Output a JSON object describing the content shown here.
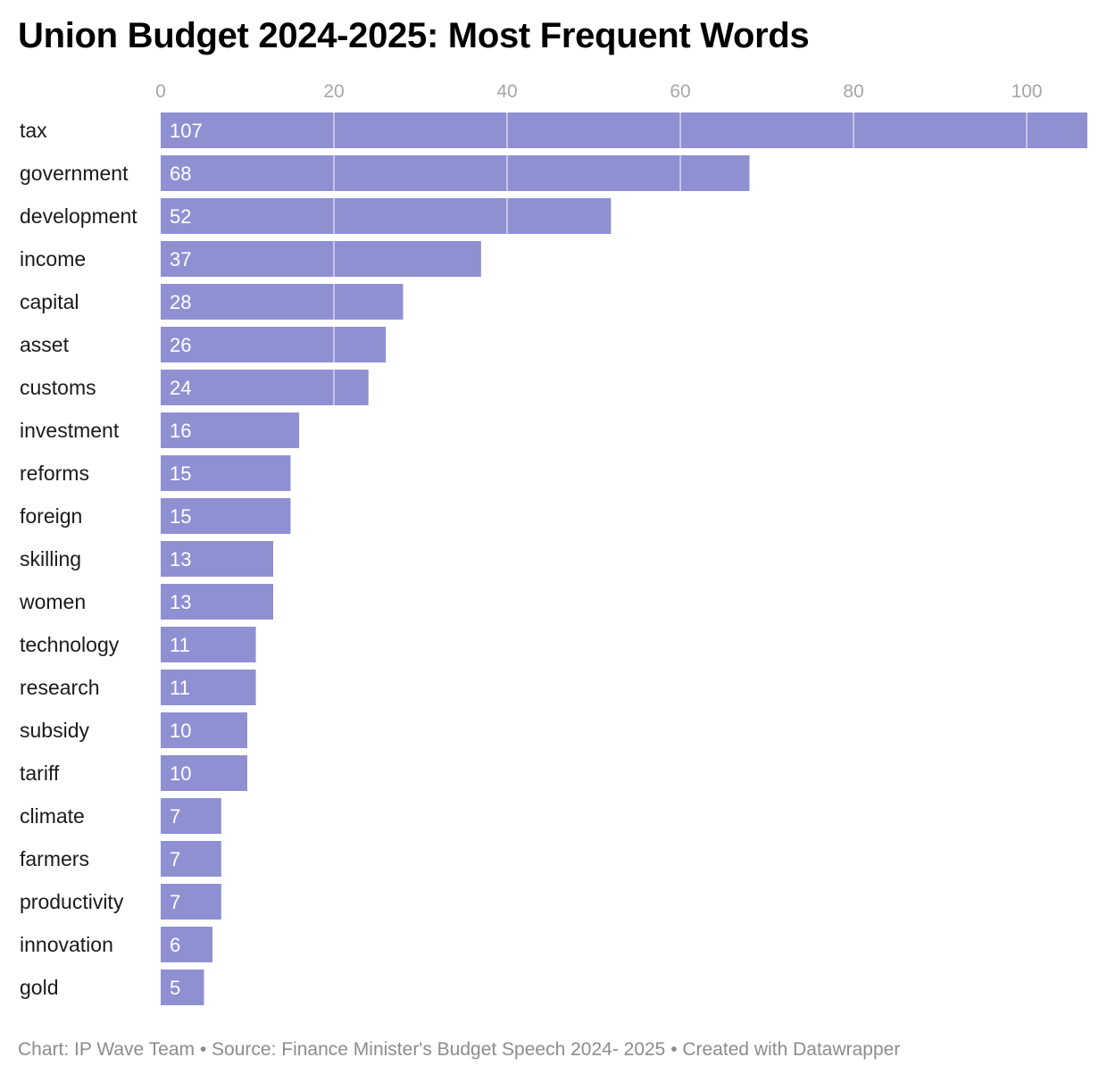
{
  "chart_data": {
    "type": "bar",
    "orientation": "horizontal",
    "title": "Union Budget 2024-2025: Most Frequent Words",
    "categories": [
      "tax",
      "government",
      "development",
      "income",
      "capital",
      "asset",
      "customs",
      "investment",
      "reforms",
      "foreign",
      "skilling",
      "women",
      "technology",
      "research",
      "subsidy",
      "tariff",
      "climate",
      "farmers",
      "productivity",
      "innovation",
      "gold"
    ],
    "values": [
      107,
      68,
      52,
      37,
      28,
      26,
      24,
      16,
      15,
      15,
      13,
      13,
      11,
      11,
      10,
      10,
      7,
      7,
      7,
      6,
      5
    ],
    "xlim": [
      0,
      107
    ],
    "xticks": [
      0,
      20,
      40,
      60,
      80,
      100
    ],
    "xlabel": "",
    "ylabel": "",
    "grid": true,
    "bar_color": "#8f90d2",
    "gridline_color": "#d6d6ee"
  },
  "footer": {
    "text": "Chart: IP Wave Team • Source: Finance Minister's Budget Speech 2024- 2025 • Created with Datawrapper"
  }
}
